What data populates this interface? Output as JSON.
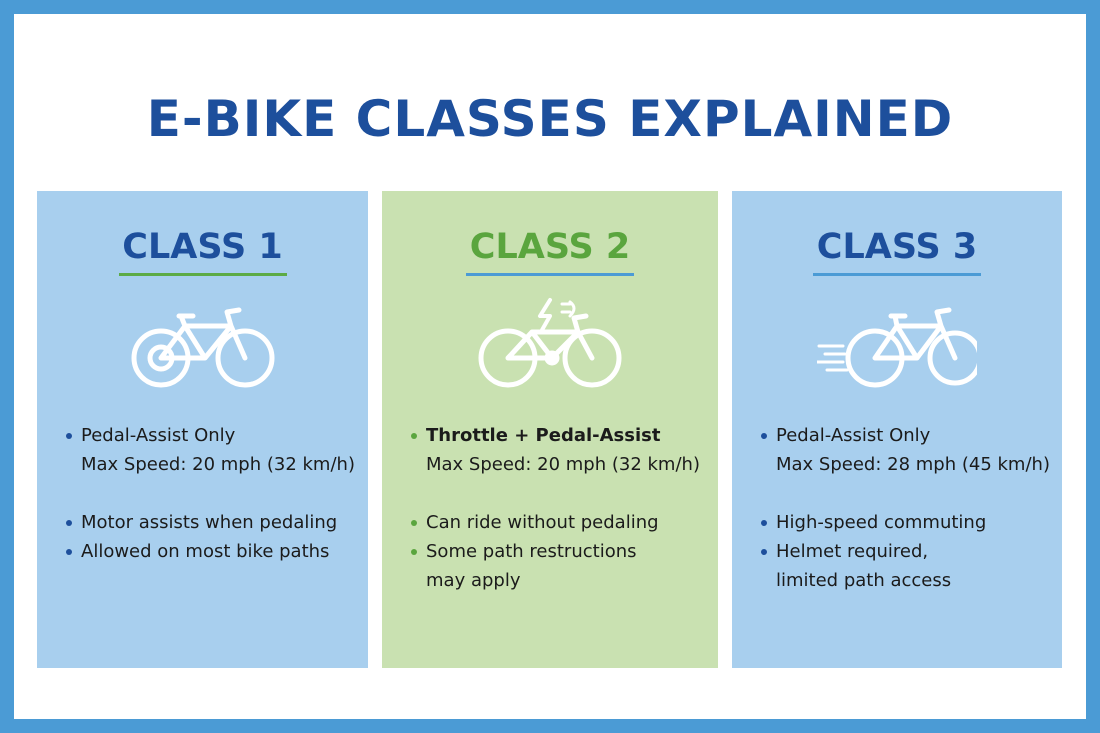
{
  "header": {
    "title": "E-BIKE CLASSES EXPLAINED"
  },
  "cards": [
    {
      "title": "CLASS 1",
      "items": [
        {
          "lines": [
            "Pedal-Assist Only",
            "Max Speed: 20 mph (32 km/h)"
          ]
        },
        {
          "lines": [
            "Motor assists when pedaling"
          ]
        },
        {
          "lines": [
            "Allowed on most bike paths"
          ]
        }
      ]
    },
    {
      "title": "CLASS 2",
      "items": [
        {
          "lines": [
            "Throttle + Pedal-Assist",
            "Max Speed: 20 mph (32 km/h)"
          ],
          "bold_first_line": true
        },
        {
          "lines": [
            "Can ride without pedaling"
          ]
        },
        {
          "lines": [
            "Some path restructions",
            "may apply"
          ]
        }
      ]
    },
    {
      "title": "CLASS 3",
      "items": [
        {
          "lines": [
            "Pedal-Assist Only",
            "Max Speed: 28 mph (45 km/h)"
          ]
        },
        {
          "lines": [
            "High-speed commuting"
          ]
        },
        {
          "lines": [
            "Helmet required,",
            "limited path access"
          ]
        }
      ]
    }
  ]
}
